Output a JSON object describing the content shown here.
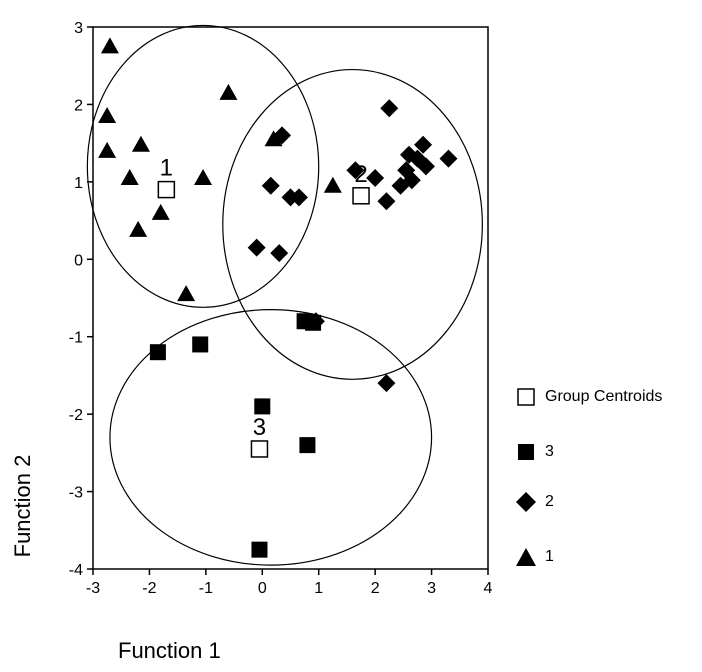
{
  "chart_data": {
    "type": "scatter",
    "xlabel": "Function 1",
    "ylabel": "Function 2",
    "xlim": [
      -3,
      4
    ],
    "ylim": [
      -4,
      3
    ],
    "xticks": [
      "-3",
      "-2",
      "-1",
      "0",
      "1",
      "2",
      "3",
      "4"
    ],
    "yticks": [
      "3",
      "2",
      "1",
      "0",
      "-1",
      "-2",
      "-3",
      "-4"
    ],
    "grid": false,
    "legend_position": "right",
    "legend": [
      {
        "label": "Group Centroids",
        "marker": "open-square"
      },
      {
        "label": "3",
        "marker": "filled-square"
      },
      {
        "label": "2",
        "marker": "filled-diamond"
      },
      {
        "label": "1",
        "marker": "filled-triangle"
      }
    ],
    "series": [
      {
        "name": "1",
        "marker": "triangle",
        "points": [
          [
            -2.7,
            2.75
          ],
          [
            -2.75,
            1.85
          ],
          [
            -2.75,
            1.4
          ],
          [
            -2.15,
            1.48
          ],
          [
            -2.35,
            1.05
          ],
          [
            -2.2,
            0.38
          ],
          [
            -1.8,
            0.6
          ],
          [
            -1.05,
            1.05
          ],
          [
            -0.6,
            2.15
          ],
          [
            -1.35,
            -0.45
          ],
          [
            0.2,
            1.55
          ],
          [
            1.25,
            0.95
          ]
        ]
      },
      {
        "name": "2",
        "marker": "diamond",
        "points": [
          [
            2.25,
            1.95
          ],
          [
            0.35,
            1.6
          ],
          [
            0.15,
            0.95
          ],
          [
            0.5,
            0.8
          ],
          [
            0.65,
            0.8
          ],
          [
            -0.1,
            0.15
          ],
          [
            0.3,
            0.08
          ],
          [
            1.65,
            1.15
          ],
          [
            2.0,
            1.05
          ],
          [
            2.2,
            0.75
          ],
          [
            2.45,
            0.95
          ],
          [
            2.6,
            1.35
          ],
          [
            2.75,
            1.3
          ],
          [
            2.85,
            1.48
          ],
          [
            2.55,
            1.15
          ],
          [
            2.65,
            1.02
          ],
          [
            2.9,
            1.2
          ],
          [
            3.3,
            1.3
          ],
          [
            0.95,
            -0.8
          ],
          [
            2.2,
            -1.6
          ]
        ]
      },
      {
        "name": "3",
        "marker": "square",
        "points": [
          [
            -1.85,
            -1.2
          ],
          [
            -1.1,
            -1.1
          ],
          [
            0.75,
            -0.8
          ],
          [
            0.9,
            -0.82
          ],
          [
            0.0,
            -1.9
          ],
          [
            0.8,
            -2.4
          ],
          [
            -0.05,
            -3.75
          ]
        ]
      }
    ],
    "centroids": [
      {
        "label": "1",
        "x": -1.7,
        "y": 0.9
      },
      {
        "label": "2",
        "x": 1.75,
        "y": 0.82
      },
      {
        "label": "3",
        "x": -0.05,
        "y": -2.45
      }
    ],
    "ellipses": [
      {
        "group": "1",
        "cx": -1.05,
        "cy": 1.2,
        "rx": 2.05,
        "ry": 1.82
      },
      {
        "group": "2",
        "cx": 1.6,
        "cy": 0.45,
        "rx": 2.3,
        "ry": 2.0
      },
      {
        "group": "3",
        "cx": 0.15,
        "cy": -2.3,
        "rx": 2.85,
        "ry": 1.65
      }
    ]
  }
}
